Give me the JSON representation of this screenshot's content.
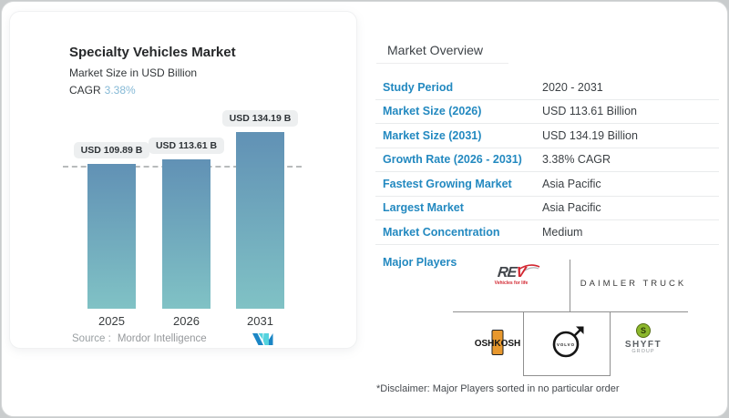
{
  "chart_card": {
    "title": "Specialty Vehicles Market",
    "subtitle": "Market Size in USD Billion",
    "cagr_label": "CAGR",
    "cagr_value": "3.38%",
    "source_label": "Source :",
    "source_value": "Mordor Intelligence"
  },
  "chart_data": {
    "type": "bar",
    "title": "Specialty Vehicles Market",
    "subtitle": "Market Size in USD Billion",
    "cagr": "3.38%",
    "unit": "USD Billion",
    "categories": [
      "2025",
      "2026",
      "2031"
    ],
    "values": [
      109.89,
      113.61,
      134.19
    ],
    "bar_labels": [
      "USD 109.89 B",
      "USD 113.61 B",
      "USD 134.19 B"
    ],
    "reference_line_value": 109.89,
    "ylim": [
      0,
      140
    ],
    "grid": "off",
    "legend": "none",
    "source": "Mordor Intelligence"
  },
  "overview": {
    "title": "Market Overview",
    "rows": [
      {
        "label": "Study Period",
        "value": "2020 - 2031"
      },
      {
        "label": "Market Size (2026)",
        "value": "USD 113.61 Billion"
      },
      {
        "label": "Market Size (2031)",
        "value": "USD 134.19 Billion"
      },
      {
        "label": "Growth Rate (2026 - 2031)",
        "value": "3.38% CAGR"
      },
      {
        "label": "Fastest Growing Market",
        "value": "Asia Pacific"
      },
      {
        "label": "Largest Market",
        "value": "Asia Pacific"
      },
      {
        "label": "Market Concentration",
        "value": "Medium"
      }
    ],
    "major_players_label": "Major Players",
    "logos": {
      "rev": {
        "prefix": "RE",
        "suffix": "V",
        "tagline": "Vehicles for life"
      },
      "daimler": {
        "text": "DAIMLER TRUCK"
      },
      "oshkosh": {
        "text": "OSHKOSH"
      },
      "volvo": {
        "text": "VOLVO"
      },
      "shyft": {
        "initial": "S",
        "name": "SHYFT",
        "sub": "GROUP"
      }
    },
    "disclaimer": "*Disclaimer: Major Players sorted in no particular order"
  },
  "colors": {
    "accent_blue": "#2389c0",
    "cagr_light_blue": "#85b9d6",
    "bar_gradient_top": "#6191b5",
    "bar_gradient_bottom": "#80c2c5",
    "badge_bg": "#edeff0",
    "rev_red": "#d22630",
    "oshkosh_orange": "#e8982d",
    "shyft_green": "#8cb72c",
    "mordor_blue": "#1b86c5",
    "mordor_teal": "#55d3de"
  }
}
